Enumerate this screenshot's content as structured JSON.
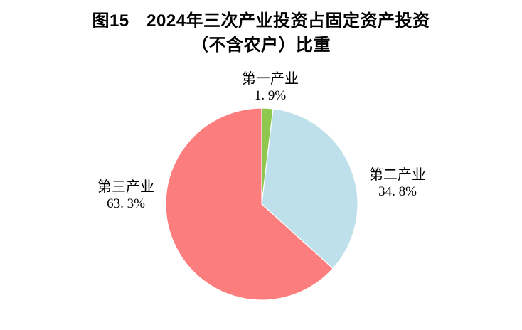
{
  "figure": {
    "title_line1": "图15　2024年三次产业投资占固定资产投资",
    "title_line2": "（不含农户）比重"
  },
  "chart_data": {
    "type": "pie",
    "title": "图15 2024年三次产业投资占固定资产投资（不含农户）比重",
    "start_angle_deg": 0,
    "direction": "clockwise",
    "legend_position": "none",
    "grid": false,
    "background_color": "#ffffff",
    "slice_border_color": "#ffffff",
    "categories": [
      "第一产业",
      "第二产业",
      "第三产业"
    ],
    "values": [
      1.9,
      34.8,
      63.3
    ],
    "slices": [
      {
        "name": "第一产业",
        "value": 1.9,
        "display": "1. 9%",
        "color": "#8EC84F"
      },
      {
        "name": "第二产业",
        "value": 34.8,
        "display": "34. 8%",
        "color": "#BDE0EB"
      },
      {
        "name": "第三产业",
        "value": 63.3,
        "display": "63. 3%",
        "color": "#FB7D7D"
      }
    ]
  }
}
